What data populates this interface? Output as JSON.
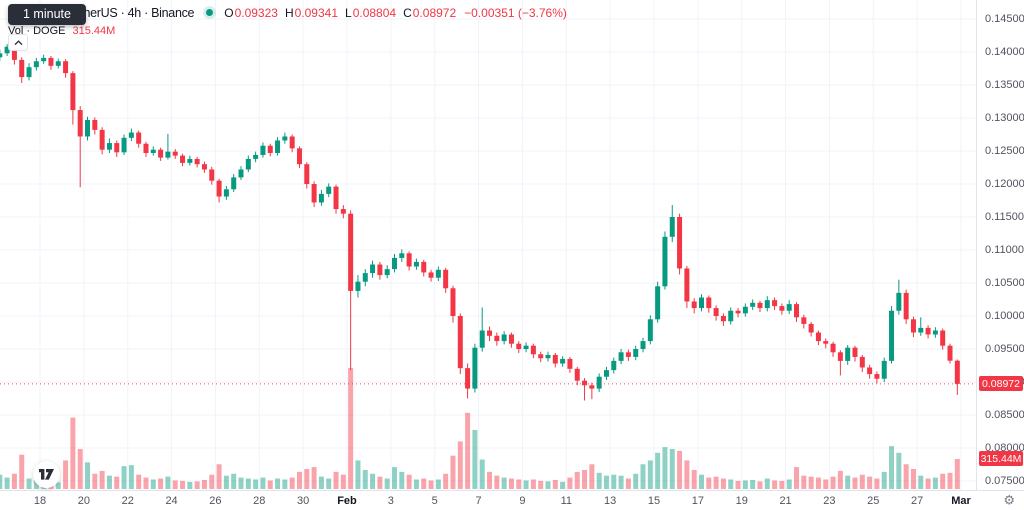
{
  "header": {
    "interval_tooltip": "1 minute",
    "symbol_title": "Dogecoin / TetherUS · 4h · Binance",
    "ohlc": {
      "o_label": "O",
      "o_value": "0.09323",
      "h_label": "H",
      "h_value": "0.09341",
      "l_label": "L",
      "l_value": "0.08804",
      "c_label": "C",
      "c_value": "0.08972",
      "change": "−0.00351 (−3.76%)"
    },
    "volume_row": {
      "label": "Vol · DOGE",
      "value": "315.44M"
    }
  },
  "colors": {
    "up": "#089981",
    "down": "#f23645",
    "volume_up": "rgba(8,153,129,0.45)",
    "volume_down": "rgba(242,54,69,0.45)",
    "grid": "#f0f3fa",
    "axis_text": "#50535e",
    "badge_bg": "#f23645",
    "title_text": "#131722"
  },
  "price_axis": {
    "labels": [
      "0.14500",
      "0.14000",
      "0.13500",
      "0.13000",
      "0.12500",
      "0.12000",
      "0.11500",
      "0.11000",
      "0.10500",
      "0.10000",
      "0.09500",
      "0.09000",
      "0.08500",
      "0.08000",
      "0.07500"
    ],
    "current_price_badge": "0.08972",
    "volume_badge": "315.44M"
  },
  "time_axis": {
    "labels": [
      "18",
      "20",
      "22",
      "24",
      "26",
      "28",
      "30",
      "Feb",
      "3",
      "5",
      "7",
      "9",
      "11",
      "13",
      "15",
      "17",
      "19",
      "21",
      "23",
      "25",
      "27",
      "Mar"
    ],
    "bold_labels": [
      "Feb",
      "Mar"
    ]
  },
  "watermark_logo": "TV",
  "gear_icon": "⚙",
  "chart_data": {
    "type": "candlestick+volume",
    "symbol": "Dogecoin / TetherUS",
    "exchange": "Binance",
    "interval": "4h",
    "date_range_shown": "Jan 18 – Mar 1",
    "price_axis_range": [
      0.075,
      0.145
    ],
    "price_axis_step": 0.005,
    "last_candle": {
      "open": 0.09323,
      "high": 0.09341,
      "low": 0.08804,
      "close": 0.08972,
      "change": -0.00351,
      "change_pct": -3.76,
      "volume_doge": "315.44M"
    },
    "candle_columns": [
      "open",
      "high",
      "low",
      "close",
      "volume_millions"
    ],
    "candles": [
      [
        0.1392,
        0.1404,
        0.1386,
        0.1398,
        150
      ],
      [
        0.1398,
        0.1412,
        0.1394,
        0.1408,
        120
      ],
      [
        0.1408,
        0.1411,
        0.1381,
        0.1388,
        160
      ],
      [
        0.1388,
        0.1392,
        0.1353,
        0.1362,
        360
      ],
      [
        0.1362,
        0.1383,
        0.1357,
        0.1377,
        110
      ],
      [
        0.1377,
        0.1391,
        0.1372,
        0.1386,
        90
      ],
      [
        0.1386,
        0.1396,
        0.1382,
        0.1391,
        80
      ],
      [
        0.1391,
        0.1394,
        0.1373,
        0.1379,
        95
      ],
      [
        0.1379,
        0.139,
        0.1375,
        0.1386,
        70
      ],
      [
        0.1386,
        0.1389,
        0.1361,
        0.1368,
        300
      ],
      [
        0.1368,
        0.1371,
        0.129,
        0.1312,
        750
      ],
      [
        0.1312,
        0.1318,
        0.1195,
        0.1272,
        420
      ],
      [
        0.1272,
        0.1302,
        0.1266,
        0.1297,
        280
      ],
      [
        0.1297,
        0.1301,
        0.1275,
        0.1282,
        160
      ],
      [
        0.1282,
        0.1286,
        0.1245,
        0.1252,
        190
      ],
      [
        0.1252,
        0.1269,
        0.1247,
        0.1262,
        140
      ],
      [
        0.1262,
        0.1266,
        0.1241,
        0.1248,
        130
      ],
      [
        0.1248,
        0.1275,
        0.1244,
        0.127,
        240
      ],
      [
        0.127,
        0.1284,
        0.1265,
        0.1278,
        250
      ],
      [
        0.1278,
        0.1281,
        0.1255,
        0.1261,
        150
      ],
      [
        0.1261,
        0.1264,
        0.1241,
        0.1247,
        120
      ],
      [
        0.1247,
        0.1257,
        0.1243,
        0.1252,
        100
      ],
      [
        0.1252,
        0.1255,
        0.1235,
        0.124,
        110
      ],
      [
        0.124,
        0.1276,
        0.1237,
        0.1249,
        130
      ],
      [
        0.1249,
        0.1253,
        0.1238,
        0.1243,
        90
      ],
      [
        0.1243,
        0.1246,
        0.1227,
        0.1232,
        85
      ],
      [
        0.1232,
        0.1243,
        0.1228,
        0.1238,
        75
      ],
      [
        0.1238,
        0.1241,
        0.1225,
        0.123,
        80
      ],
      [
        0.123,
        0.1234,
        0.1217,
        0.1222,
        95
      ],
      [
        0.1222,
        0.1226,
        0.1199,
        0.1205,
        150
      ],
      [
        0.1205,
        0.1208,
        0.1172,
        0.1181,
        260
      ],
      [
        0.1181,
        0.1197,
        0.1176,
        0.1192,
        140
      ],
      [
        0.1192,
        0.1215,
        0.1188,
        0.121,
        160
      ],
      [
        0.121,
        0.1227,
        0.1206,
        0.1222,
        120
      ],
      [
        0.1222,
        0.1243,
        0.1218,
        0.1238,
        110
      ],
      [
        0.1238,
        0.1249,
        0.1233,
        0.1244,
        100
      ],
      [
        0.1244,
        0.1263,
        0.124,
        0.1258,
        120
      ],
      [
        0.1258,
        0.1261,
        0.1242,
        0.1247,
        90
      ],
      [
        0.1247,
        0.1271,
        0.1243,
        0.1266,
        110
      ],
      [
        0.1266,
        0.1278,
        0.1261,
        0.1272,
        100
      ],
      [
        0.1272,
        0.1275,
        0.1248,
        0.1254,
        120
      ],
      [
        0.1254,
        0.1257,
        0.1224,
        0.123,
        180
      ],
      [
        0.123,
        0.1233,
        0.1193,
        0.12,
        210
      ],
      [
        0.12,
        0.1204,
        0.1165,
        0.1172,
        230
      ],
      [
        0.1172,
        0.1191,
        0.1167,
        0.1185,
        130
      ],
      [
        0.1185,
        0.1201,
        0.118,
        0.1196,
        110
      ],
      [
        0.1196,
        0.1199,
        0.1155,
        0.1162,
        180
      ],
      [
        0.1162,
        0.1168,
        0.1148,
        0.1155,
        150
      ],
      [
        0.1155,
        0.116,
        0.0918,
        0.1038,
        1270
      ],
      [
        0.1038,
        0.1062,
        0.1028,
        0.1052,
        300
      ],
      [
        0.1052,
        0.1071,
        0.1045,
        0.1065,
        200
      ],
      [
        0.1065,
        0.1084,
        0.1058,
        0.1078,
        160
      ],
      [
        0.1078,
        0.1082,
        0.1055,
        0.1062,
        130
      ],
      [
        0.1062,
        0.1077,
        0.1057,
        0.1071,
        110
      ],
      [
        0.1071,
        0.1094,
        0.1066,
        0.1088,
        230
      ],
      [
        0.1088,
        0.1101,
        0.1082,
        0.1095,
        180
      ],
      [
        0.1095,
        0.1098,
        0.1069,
        0.1075,
        150
      ],
      [
        0.1075,
        0.1087,
        0.107,
        0.1082,
        100
      ],
      [
        0.1082,
        0.1085,
        0.106,
        0.1066,
        110
      ],
      [
        0.1066,
        0.107,
        0.1052,
        0.1058,
        90
      ],
      [
        0.1058,
        0.1075,
        0.1053,
        0.107,
        100
      ],
      [
        0.107,
        0.1073,
        0.1035,
        0.1042,
        160
      ],
      [
        0.1042,
        0.1046,
        0.099,
        0.1,
        350
      ],
      [
        0.1,
        0.1004,
        0.0912,
        0.0921,
        500
      ],
      [
        0.0921,
        0.0928,
        0.0875,
        0.089,
        800
      ],
      [
        0.089,
        0.0958,
        0.0884,
        0.0952,
        620
      ],
      [
        0.0952,
        0.1013,
        0.0946,
        0.0978,
        310
      ],
      [
        0.0978,
        0.0984,
        0.0962,
        0.097,
        180
      ],
      [
        0.097,
        0.0975,
        0.0955,
        0.0962,
        140
      ],
      [
        0.0962,
        0.0977,
        0.0957,
        0.0972,
        120
      ],
      [
        0.0972,
        0.0975,
        0.0952,
        0.0958,
        110
      ],
      [
        0.0958,
        0.0962,
        0.0944,
        0.095,
        100
      ],
      [
        0.095,
        0.096,
        0.0945,
        0.0955,
        90
      ],
      [
        0.0955,
        0.0958,
        0.0936,
        0.0942,
        100
      ],
      [
        0.0942,
        0.0946,
        0.093,
        0.0936,
        85
      ],
      [
        0.0936,
        0.0946,
        0.0931,
        0.0941,
        80
      ],
      [
        0.0941,
        0.0944,
        0.0922,
        0.0928,
        95
      ],
      [
        0.0928,
        0.0939,
        0.0923,
        0.0935,
        75
      ],
      [
        0.0935,
        0.0938,
        0.0914,
        0.092,
        120
      ],
      [
        0.092,
        0.0923,
        0.0895,
        0.0902,
        180
      ],
      [
        0.0902,
        0.0906,
        0.0872,
        0.0895,
        200
      ],
      [
        0.0895,
        0.0899,
        0.0874,
        0.089,
        260
      ],
      [
        0.089,
        0.0913,
        0.0885,
        0.0908,
        170
      ],
      [
        0.0908,
        0.0923,
        0.0903,
        0.0918,
        140
      ],
      [
        0.0918,
        0.0937,
        0.0913,
        0.0932,
        150
      ],
      [
        0.0932,
        0.095,
        0.0927,
        0.0945,
        140
      ],
      [
        0.0945,
        0.0949,
        0.0932,
        0.0938,
        110
      ],
      [
        0.0938,
        0.0955,
        0.0933,
        0.095,
        160
      ],
      [
        0.095,
        0.0967,
        0.0945,
        0.0962,
        260
      ],
      [
        0.0962,
        0.1001,
        0.0957,
        0.0995,
        300
      ],
      [
        0.0995,
        0.1052,
        0.099,
        0.1045,
        380
      ],
      [
        0.1045,
        0.1128,
        0.104,
        0.112,
        440
      ],
      [
        0.112,
        0.1168,
        0.1112,
        0.115,
        420
      ],
      [
        0.115,
        0.1155,
        0.1063,
        0.1072,
        400
      ],
      [
        0.1072,
        0.1076,
        0.1012,
        0.1022,
        300
      ],
      [
        0.1022,
        0.1027,
        0.1004,
        0.1012,
        200
      ],
      [
        0.1012,
        0.1033,
        0.1007,
        0.1028,
        150
      ],
      [
        0.1028,
        0.1031,
        0.1005,
        0.1012,
        120
      ],
      [
        0.1012,
        0.1016,
        0.0993,
        0.1,
        130
      ],
      [
        0.1,
        0.1004,
        0.0985,
        0.0992,
        110
      ],
      [
        0.0992,
        0.1013,
        0.0987,
        0.1008,
        100
      ],
      [
        0.1008,
        0.1012,
        0.0998,
        0.1004,
        85
      ],
      [
        0.1004,
        0.1019,
        0.0999,
        0.1014,
        90
      ],
      [
        0.1014,
        0.1025,
        0.1009,
        0.102,
        95
      ],
      [
        0.102,
        0.1023,
        0.1006,
        0.1012,
        80
      ],
      [
        0.1012,
        0.103,
        0.1007,
        0.1024,
        110
      ],
      [
        0.1024,
        0.1028,
        0.1009,
        0.1015,
        90
      ],
      [
        0.1015,
        0.1019,
        0.1002,
        0.1008,
        85
      ],
      [
        0.1008,
        0.1024,
        0.1003,
        0.1018,
        100
      ],
      [
        0.1018,
        0.1021,
        0.0991,
        0.0998,
        230
      ],
      [
        0.0998,
        0.1002,
        0.0981,
        0.0988,
        140
      ],
      [
        0.0988,
        0.0991,
        0.0969,
        0.0975,
        130
      ],
      [
        0.0975,
        0.0978,
        0.0956,
        0.0962,
        120
      ],
      [
        0.0962,
        0.0966,
        0.0951,
        0.0958,
        100
      ],
      [
        0.0958,
        0.0961,
        0.0938,
        0.0945,
        130
      ],
      [
        0.0945,
        0.0948,
        0.091,
        0.0932,
        190
      ],
      [
        0.0932,
        0.0956,
        0.0926,
        0.0952,
        140
      ],
      [
        0.0952,
        0.0955,
        0.0931,
        0.0938,
        120
      ],
      [
        0.0938,
        0.0941,
        0.0915,
        0.0922,
        150
      ],
      [
        0.0922,
        0.0926,
        0.0905,
        0.0912,
        130
      ],
      [
        0.0912,
        0.0916,
        0.0898,
        0.0905,
        110
      ],
      [
        0.0905,
        0.0937,
        0.09,
        0.0932,
        180
      ],
      [
        0.0932,
        0.1015,
        0.0928,
        0.1008,
        450
      ],
      [
        0.1008,
        0.1055,
        0.1002,
        0.1035,
        380
      ],
      [
        0.1035,
        0.104,
        0.0988,
        0.0995,
        260
      ],
      [
        0.0995,
        0.0999,
        0.0968,
        0.0975,
        210
      ],
      [
        0.0975,
        0.0998,
        0.097,
        0.0982,
        140
      ],
      [
        0.0982,
        0.0986,
        0.0966,
        0.0972,
        110
      ],
      [
        0.0972,
        0.0983,
        0.0967,
        0.0978,
        120
      ],
      [
        0.0978,
        0.0981,
        0.0949,
        0.0955,
        160
      ],
      [
        0.0955,
        0.0958,
        0.0928,
        0.09323,
        170
      ],
      [
        0.09323,
        0.09341,
        0.08804,
        0.08972,
        315.44
      ]
    ]
  }
}
